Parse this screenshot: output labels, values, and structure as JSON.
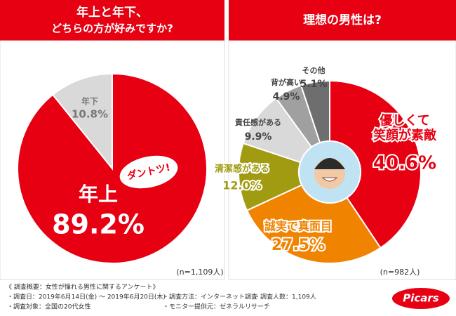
{
  "chart_data": [
    {
      "type": "pie",
      "title": [
        "年上と年下、",
        "どちらの方が好みですか?"
      ],
      "categories": [
        "年上",
        "年下"
      ],
      "values": [
        89.2,
        10.8
      ],
      "value_labels": [
        "89.2%",
        "10.8%"
      ],
      "colors": [
        "#e60012",
        "#d9d9d9"
      ],
      "annotation": "ダントツ!",
      "sample_size": "(n=1,109人)"
    },
    {
      "type": "donut",
      "title": "理想の男性は?",
      "categories": [
        "優しくて\n笑顔が素敵",
        "誠実で真面目",
        "清潔感がある",
        "責任感がある",
        "背が高い",
        "その他"
      ],
      "values": [
        40.6,
        27.5,
        12.0,
        9.9,
        4.9,
        5.1
      ],
      "value_labels": [
        "40.6%",
        "27.5%",
        "12.0%",
        "9.9%",
        "4.9%",
        "5.1%"
      ],
      "colors": [
        "#e60012",
        "#f08300",
        "#a19b12",
        "#d9d9d9",
        "#a0a0a0",
        "#6e6e6e"
      ],
      "sample_size": "(n=982人)"
    }
  ],
  "footer": {
    "heading": "《 調査概要：女性が憧れる男性に関するアンケート》",
    "items": [
      "・調査日：2019年6月14日(金) 〜 2019年6月20日(木)",
      "・調査方法：インターネット調査",
      "・調査人数：1,109人",
      "・調査対象：全国の20代女性",
      "・モニター提供元：ゼネラルリサーチ"
    ],
    "logo": "Picars"
  }
}
